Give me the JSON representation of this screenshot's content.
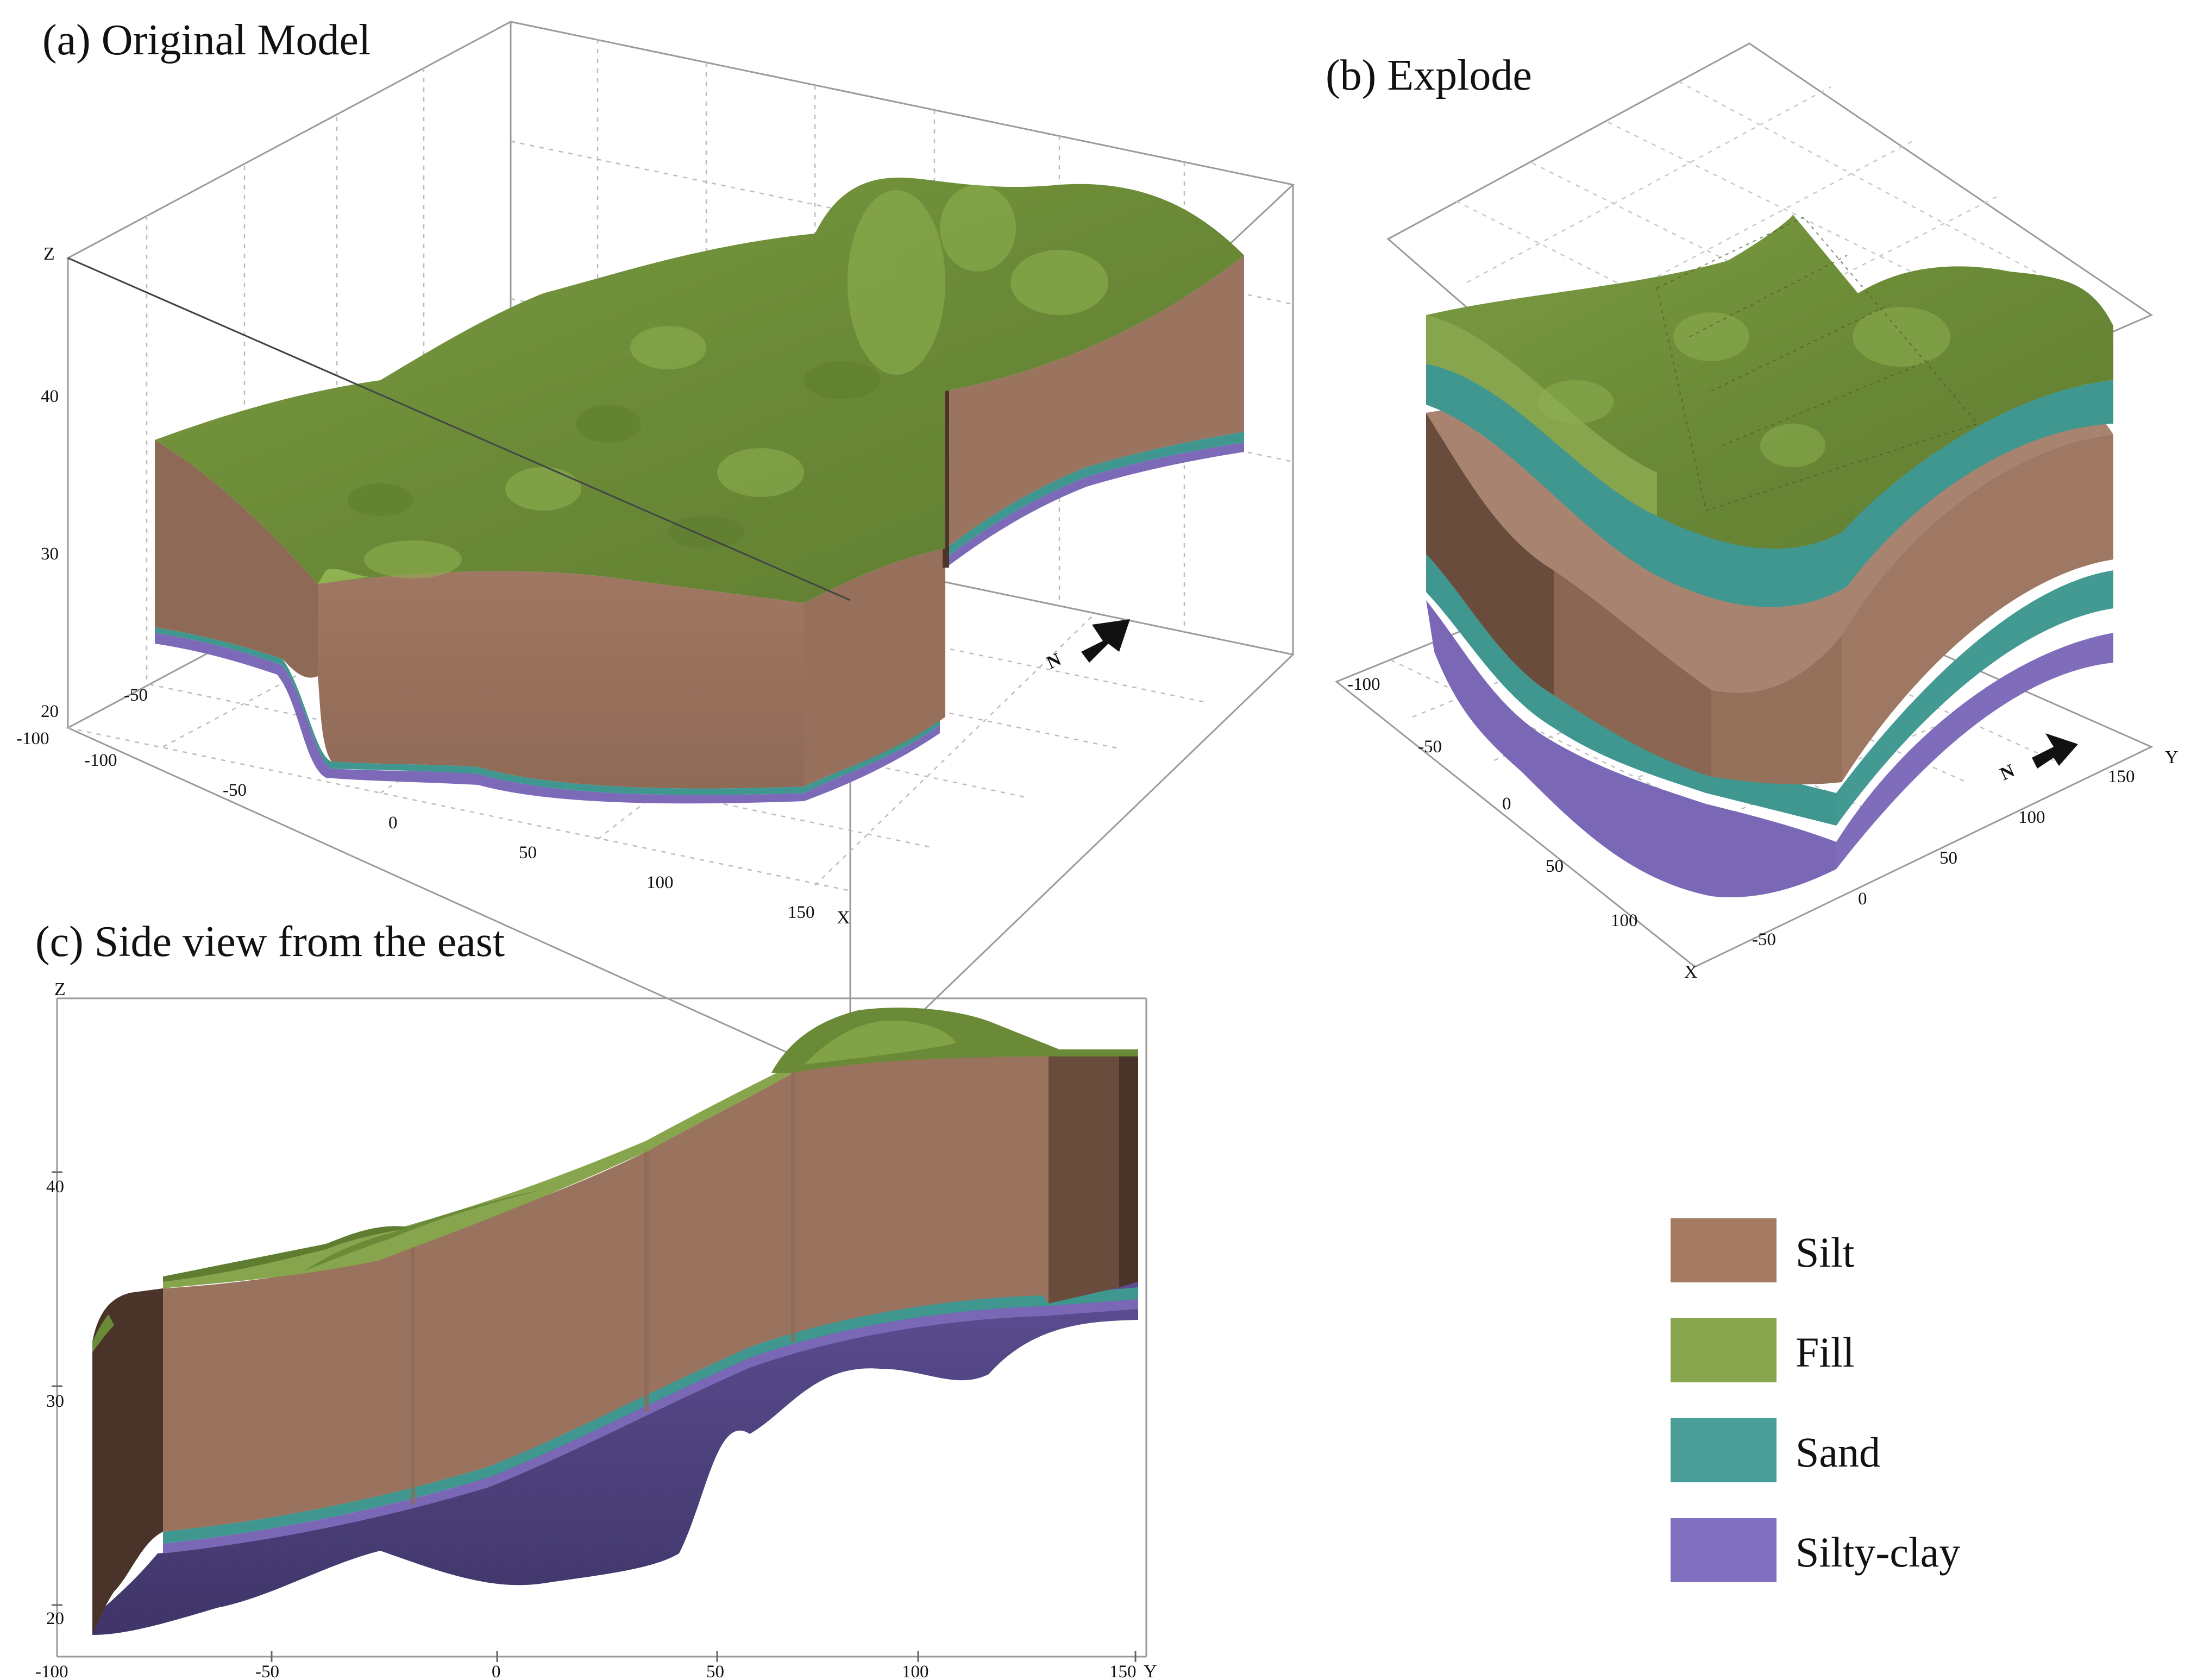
{
  "panels": {
    "a": {
      "title": "(a) Original Model",
      "axis_z": "Z",
      "axis_x": "X",
      "z_ticks": [
        "40",
        "30",
        "20"
      ],
      "x_ticks": [
        "-100",
        "-50",
        "0",
        "50",
        "100",
        "150"
      ],
      "y_ticks": [
        "-100",
        "-50"
      ],
      "north_label": "N"
    },
    "b": {
      "title": "(b) Explode",
      "axis_x": "X",
      "axis_y": "Y",
      "x_ticks": [
        "-100",
        "-50",
        "0",
        "50",
        "100"
      ],
      "y_ticks": [
        "-50",
        "0",
        "50",
        "100",
        "150"
      ],
      "north_label": "N"
    },
    "c": {
      "title": "(c) Side view from the east",
      "axis_z": "Z",
      "axis_y": "Y",
      "z_ticks": [
        "40",
        "30",
        "20"
      ],
      "y_ticks": [
        "-100",
        "-50",
        "0",
        "50",
        "100",
        "150"
      ]
    }
  },
  "legend": [
    {
      "label": "Silt",
      "color": "#a57a62"
    },
    {
      "label": "Fill",
      "color": "#86a54c"
    },
    {
      "label": "Sand",
      "color": "#4a9e98"
    },
    {
      "label": "Silty-clay",
      "color": "#8170bf"
    }
  ],
  "colors": {
    "fill_top": "#6f8f3a",
    "fill_light": "#8fb251",
    "silt": "#9c7560",
    "silt_dark": "#6e4f40",
    "silt_shadow": "#4a3328",
    "sand": "#3f9790",
    "clay": "#7a68b6",
    "clay_dark": "#4f4380"
  }
}
